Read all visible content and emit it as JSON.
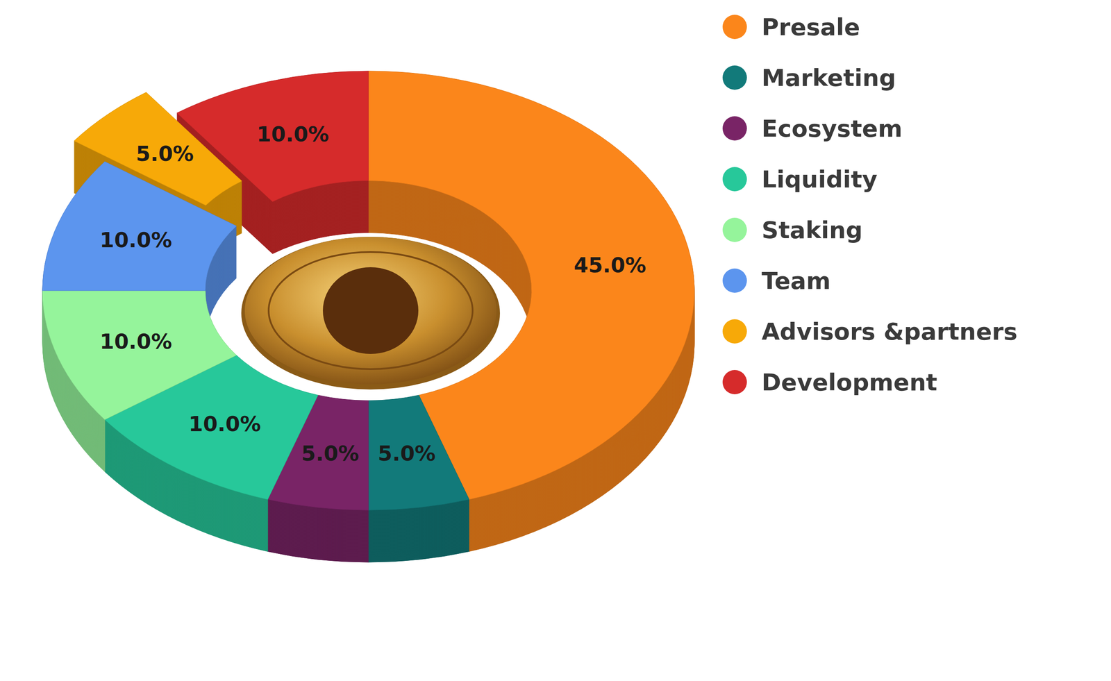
{
  "chart_data": {
    "type": "donut",
    "categories": [
      "Presale",
      "Marketing",
      "Ecosystem",
      "Liquidity",
      "Staking",
      "Team",
      "Advisors &partners",
      "Development"
    ],
    "values": [
      45,
      5,
      5,
      10,
      10,
      10,
      5,
      10
    ],
    "value_labels": [
      "45.0%",
      "5.0%",
      "5.0%",
      "10.0%",
      "10.0%",
      "10.0%",
      "5.0%",
      "10.0%"
    ],
    "colors": [
      "#fb861b",
      "#127a7a",
      "#792466",
      "#27c89a",
      "#95f49b",
      "#5c95ee",
      "#f7a908",
      "#d62b2b"
    ],
    "data_labels": true,
    "legend": "top-right"
  }
}
